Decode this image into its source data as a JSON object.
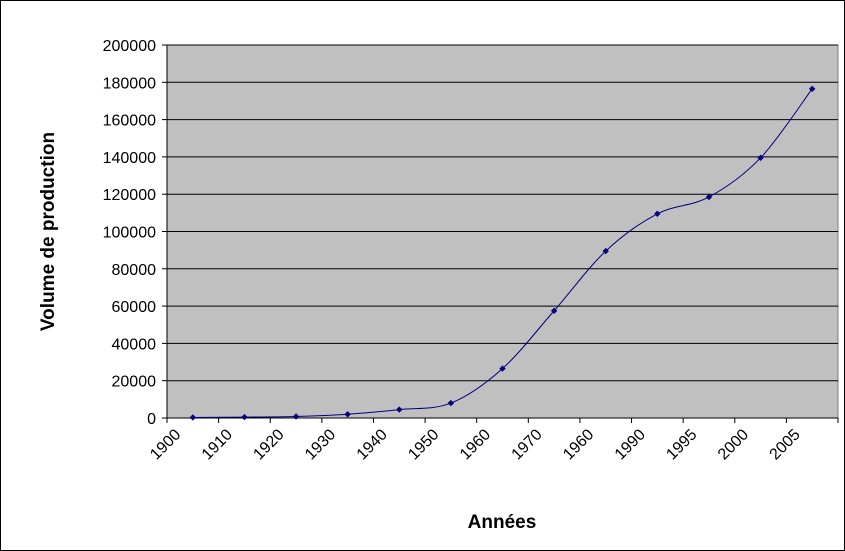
{
  "chart_data": {
    "type": "line",
    "title": "",
    "xlabel": "Années",
    "ylabel": "Volume de production",
    "categories": [
      "1900",
      "1910",
      "1920",
      "1930",
      "1940",
      "1950",
      "1960",
      "1970",
      "1960",
      "1990",
      "1995",
      "2000",
      "2005"
    ],
    "series": [
      {
        "values": [
          300,
          500,
          800,
          2000,
          4500,
          8000,
          26500,
          57500,
          89500,
          109500,
          118500,
          139500,
          176500
        ]
      }
    ],
    "ylim": [
      0,
      200000
    ],
    "y_ticks": [
      "0",
      "20000",
      "40000",
      "60000",
      "80000",
      "100000",
      "120000",
      "140000",
      "160000",
      "180000",
      "200000"
    ],
    "grid": true,
    "legend": "none",
    "colors": {
      "plot_background": "#c0c0c0",
      "line": "#000080",
      "gridline": "#000000"
    }
  }
}
